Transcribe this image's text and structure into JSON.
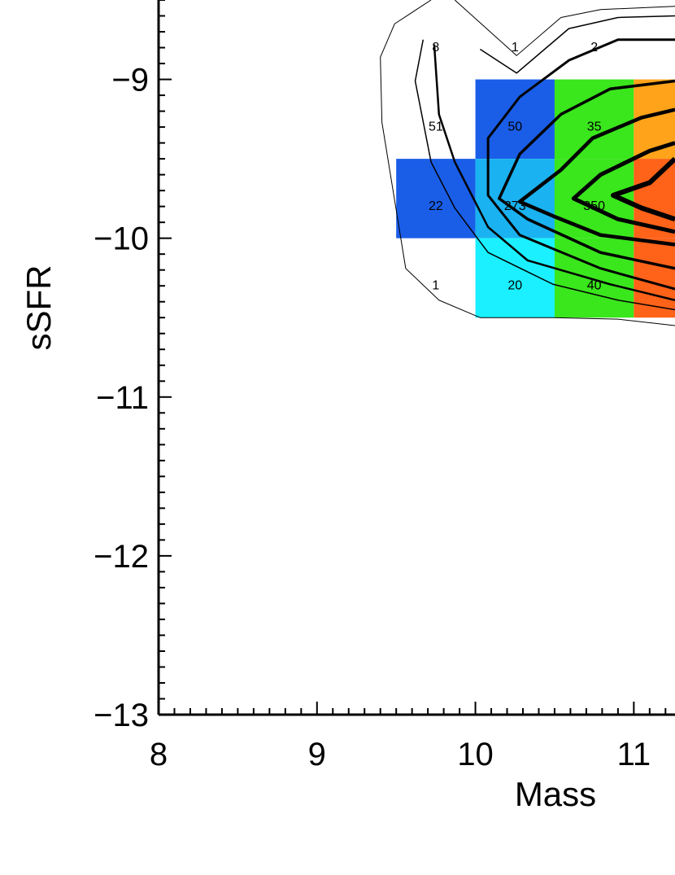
{
  "chart_data": {
    "type": "heatmap-contour",
    "x_label": "Mass",
    "y_label": "sSFR",
    "xlim": [
      8,
      11.26
    ],
    "ylim": [
      -13,
      -8.5
    ],
    "xticks": [
      8,
      9,
      10,
      11
    ],
    "yticks": [
      {
        "value": -9,
        "label": "−9"
      },
      {
        "value": -10,
        "label": "−10"
      },
      {
        "value": -11,
        "label": "−11"
      },
      {
        "value": -12,
        "label": "−12"
      },
      {
        "value": -13,
        "label": "−13"
      }
    ],
    "minor_ticks": 10,
    "tiles": [
      {
        "x": [
          10,
          10.5
        ],
        "y": [
          -9.5,
          -9
        ],
        "color": "#1a5ee8"
      },
      {
        "x": [
          10.5,
          11
        ],
        "y": [
          -9.5,
          -9
        ],
        "color": "#3ae61c"
      },
      {
        "x": [
          11,
          11.5
        ],
        "y": [
          -9.5,
          -9
        ],
        "color": "#ffa31a"
      },
      {
        "x": [
          9.5,
          10
        ],
        "y": [
          -10,
          -9.5
        ],
        "color": "#1a5ee8"
      },
      {
        "x": [
          10,
          10.5
        ],
        "y": [
          -10,
          -9.5
        ],
        "color": "#1ab2f0"
      },
      {
        "x": [
          10.5,
          11
        ],
        "y": [
          -10,
          -9.5
        ],
        "color": "#3ae61c"
      },
      {
        "x": [
          11,
          11.5
        ],
        "y": [
          -10,
          -9.5
        ],
        "color": "#ff6219"
      },
      {
        "x": [
          10,
          10.5
        ],
        "y": [
          -10.5,
          -10
        ],
        "color": "#1af0ff"
      },
      {
        "x": [
          10.5,
          11
        ],
        "y": [
          -10.5,
          -10
        ],
        "color": "#3ae61c"
      },
      {
        "x": [
          11,
          11.5
        ],
        "y": [
          -10.5,
          -10
        ],
        "color": "#ff6219"
      }
    ],
    "counts": [
      {
        "x": 9.75,
        "y": -8.75,
        "value": 8
      },
      {
        "x": 10.25,
        "y": -8.75,
        "value": 1
      },
      {
        "x": 10.75,
        "y": -8.75,
        "value": 2
      },
      {
        "x": 9.75,
        "y": -9.25,
        "value": 51
      },
      {
        "x": 10.25,
        "y": -9.25,
        "value": 50
      },
      {
        "x": 10.75,
        "y": -9.25,
        "value": 35
      },
      {
        "x": 9.75,
        "y": -9.75,
        "value": 22
      },
      {
        "x": 10.25,
        "y": -9.75,
        "value": 273
      },
      {
        "x": 10.75,
        "y": -9.75,
        "value": 350
      },
      {
        "x": 9.75,
        "y": -10.25,
        "value": 1
      },
      {
        "x": 10.25,
        "y": -10.25,
        "value": 20
      },
      {
        "x": 10.75,
        "y": -10.25,
        "value": 40
      }
    ],
    "contours": [
      {
        "line_width": 1,
        "x": [
          11.26,
          10.9,
          10.49,
          10.03,
          9.77,
          9.56,
          9.41,
          9.4,
          9.49,
          9.72
        ],
        "y": [
          -10.55,
          -10.51,
          -10.5,
          -10.5,
          -10.39,
          -10.19,
          -9.27,
          -8.86,
          -8.65,
          -8.5
        ]
      },
      {
        "line_width": 1,
        "x": [
          9.87,
          10.26,
          10.54,
          10.79,
          11.26
        ],
        "y": [
          -8.5,
          -8.85,
          -8.61,
          -8.56,
          -8.54
        ]
      },
      {
        "line_width": 1.5,
        "x": [
          11.26,
          10.9,
          10.49,
          10.08,
          9.87,
          9.72,
          9.62,
          9.67
        ],
        "y": [
          -10.45,
          -10.39,
          -10.29,
          -10.09,
          -9.81,
          -9.52,
          -9.01,
          -8.75
        ]
      },
      {
        "line_width": 1.5,
        "x": [
          10.03,
          10.26,
          10.59,
          10.9,
          11.26
        ],
        "y": [
          -8.81,
          -8.96,
          -8.68,
          -8.61,
          -8.6
        ]
      },
      {
        "line_width": 2.5,
        "x": [
          11.26,
          10.85,
          10.33,
          10.08,
          9.87,
          9.77,
          9.74
        ],
        "y": [
          -10.39,
          -10.29,
          -10.14,
          -9.93,
          -9.52,
          -9.22,
          -8.78
        ]
      },
      {
        "line_width": 3,
        "x": [
          11.26,
          10.79,
          10.28,
          10.08,
          10.08,
          10.28,
          10.59,
          10.9,
          11.26
        ],
        "y": [
          -10.32,
          -10.19,
          -9.98,
          -9.73,
          -9.37,
          -9.11,
          -8.88,
          -8.75,
          -8.75
        ]
      },
      {
        "line_width": 3.5,
        "x": [
          11.26,
          10.79,
          10.33,
          10.15,
          10.28,
          10.54,
          10.85,
          11.26
        ],
        "y": [
          -10.19,
          -10.09,
          -9.88,
          -9.75,
          -9.47,
          -9.22,
          -9.06,
          -9.01
        ]
      },
      {
        "line_width": 4.5,
        "x": [
          11.26,
          10.79,
          10.49,
          10.28,
          10.54,
          10.74,
          11.05,
          11.26
        ],
        "y": [
          -10.04,
          -9.98,
          -9.86,
          -9.77,
          -9.57,
          -9.37,
          -9.24,
          -9.19
        ]
      },
      {
        "line_width": 5,
        "x": [
          11.26,
          10.9,
          10.62,
          10.79,
          11.1,
          11.26
        ],
        "y": [
          -9.96,
          -9.88,
          -9.75,
          -9.6,
          -9.45,
          -9.4
        ]
      },
      {
        "line_width": 6,
        "x": [
          11.26,
          11.05,
          10.87,
          11.1,
          11.26
        ],
        "y": [
          -9.88,
          -9.81,
          -9.73,
          -9.65,
          -9.5
        ]
      }
    ]
  }
}
